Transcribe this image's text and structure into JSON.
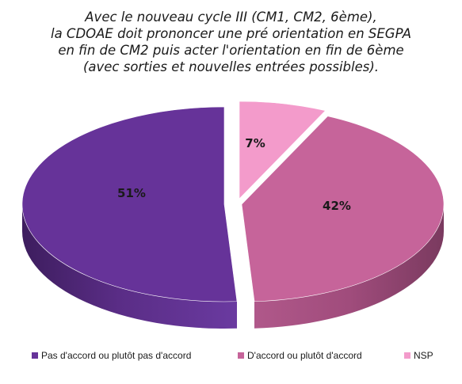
{
  "chart_data": {
    "type": "pie",
    "title": [
      "Avec le nouveau cycle III (CM1, CM2, 6ème),",
      "la CDOAE doit prononcer une pré orientation en SEGPA",
      "en fin de CM2 puis acter l'orientation en fin de 6ème",
      "(avec sorties et nouvelles entrées possibles)."
    ],
    "slices": [
      {
        "label": "Pas d'accord ou plutôt pas d'accord",
        "value": 51,
        "display": "51%",
        "color": "#663399"
      },
      {
        "label": "D'accord ou plutôt d'accord",
        "value": 42,
        "display": "42%",
        "color": "#c6649a"
      },
      {
        "label": "NSP",
        "value": 7,
        "display": "7%",
        "color": "#f39bcb"
      }
    ],
    "style": "3d-exploded",
    "legend_position": "bottom"
  }
}
